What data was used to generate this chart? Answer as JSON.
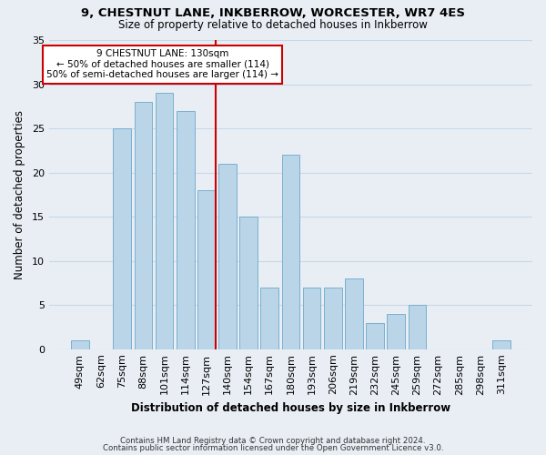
{
  "title_line1": "9, CHESTNUT LANE, INKBERROW, WORCESTER, WR7 4ES",
  "title_line2": "Size of property relative to detached houses in Inkberrow",
  "xlabel": "Distribution of detached houses by size in Inkberrow",
  "ylabel": "Number of detached properties",
  "bar_labels": [
    "49sqm",
    "62sqm",
    "75sqm",
    "88sqm",
    "101sqm",
    "114sqm",
    "127sqm",
    "140sqm",
    "154sqm",
    "167sqm",
    "180sqm",
    "193sqm",
    "206sqm",
    "219sqm",
    "232sqm",
    "245sqm",
    "259sqm",
    "272sqm",
    "285sqm",
    "298sqm",
    "311sqm"
  ],
  "bar_values": [
    1,
    0,
    25,
    28,
    29,
    27,
    18,
    21,
    15,
    7,
    22,
    7,
    7,
    8,
    3,
    4,
    5,
    0,
    0,
    0,
    1
  ],
  "bar_color": "#bad4e8",
  "bar_edge_color": "#7ab0d0",
  "reference_line_color": "#cc0000",
  "annotation_text_line1": "9 CHESTNUT LANE: 130sqm",
  "annotation_text_line2": "← 50% of detached houses are smaller (114)",
  "annotation_text_line3": "50% of semi-detached houses are larger (114) →",
  "annotation_box_facecolor": "#ffffff",
  "annotation_box_edgecolor": "#cc0000",
  "ylim": [
    0,
    35
  ],
  "yticks": [
    0,
    5,
    10,
    15,
    20,
    25,
    30,
    35
  ],
  "footer_line1": "Contains HM Land Registry data © Crown copyright and database right 2024.",
  "footer_line2": "Contains public sector information licensed under the Open Government Licence v3.0.",
  "fig_facecolor": "#e8eef4",
  "plot_facecolor": "#e8eef4",
  "grid_color": "#c8d8e8"
}
